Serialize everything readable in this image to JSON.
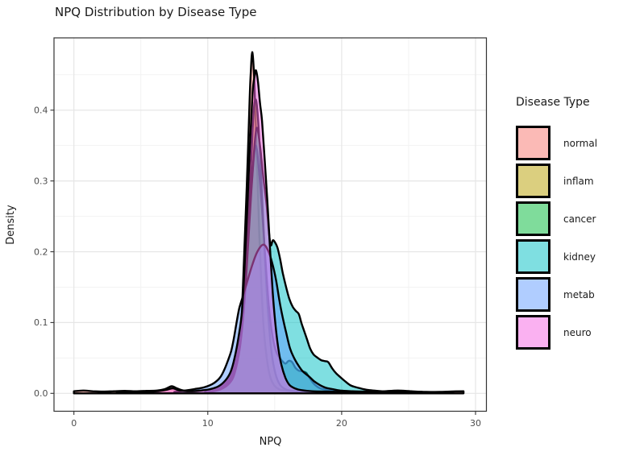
{
  "chart_data": {
    "type": "area",
    "title": "NPQ Distribution by Disease Type",
    "xlabel": "NPQ",
    "ylabel": "Density",
    "xlim": [
      0,
      30
    ],
    "ylim": [
      0,
      0.48
    ],
    "grid": true,
    "legend_position": "right",
    "legend_title": "Disease Type",
    "x_ticks": [
      0,
      10,
      20,
      30
    ],
    "x_tick_labels": [
      "0",
      "10",
      "20",
      "30"
    ],
    "x_minor_ticks": [
      5,
      15,
      25
    ],
    "y_ticks": [
      0,
      0.1,
      0.2,
      0.3,
      0.4
    ],
    "y_tick_labels": [
      "0.0",
      "0.1",
      "0.2",
      "0.3",
      "0.4"
    ],
    "y_minor_ticks": [
      0.05,
      0.15,
      0.25,
      0.35,
      0.45
    ],
    "series": [
      {
        "name": "normal",
        "fill": "rgba(248,118,109,0.5)",
        "stroke": "#000000",
        "points": [
          [
            0,
            0.003
          ],
          [
            0.7,
            0.004
          ],
          [
            1.4,
            0.003
          ],
          [
            2.2,
            0.0025
          ],
          [
            3,
            0.003
          ],
          [
            3.8,
            0.0035
          ],
          [
            4.6,
            0.003
          ],
          [
            5.4,
            0.0035
          ],
          [
            6.2,
            0.004
          ],
          [
            6.8,
            0.006
          ],
          [
            7.3,
            0.01
          ],
          [
            7.7,
            0.007
          ],
          [
            8.2,
            0.004
          ],
          [
            8.8,
            0.0035
          ],
          [
            9.4,
            0.004
          ],
          [
            10,
            0.005
          ],
          [
            10.5,
            0.007
          ],
          [
            11,
            0.011
          ],
          [
            11.4,
            0.018
          ],
          [
            11.8,
            0.03
          ],
          [
            12.1,
            0.048
          ],
          [
            12.35,
            0.072
          ],
          [
            12.55,
            0.12
          ],
          [
            12.7,
            0.185
          ],
          [
            12.85,
            0.26
          ],
          [
            13,
            0.34
          ],
          [
            13.1,
            0.4
          ],
          [
            13.2,
            0.45
          ],
          [
            13.32,
            0.482
          ],
          [
            13.45,
            0.452
          ],
          [
            13.55,
            0.4
          ],
          [
            13.7,
            0.31
          ],
          [
            13.85,
            0.225
          ],
          [
            14,
            0.155
          ],
          [
            14.15,
            0.1
          ],
          [
            14.35,
            0.058
          ],
          [
            14.6,
            0.028
          ],
          [
            14.9,
            0.013
          ],
          [
            15.3,
            0.006
          ],
          [
            15.9,
            0.0035
          ],
          [
            16.8,
            0.003
          ],
          [
            18,
            0.0025
          ],
          [
            19.5,
            0.002
          ],
          [
            21,
            0.002
          ],
          [
            22.3,
            0.002
          ],
          [
            23.2,
            0.003
          ],
          [
            24.2,
            0.004
          ],
          [
            25.2,
            0.003
          ],
          [
            26.3,
            0.002
          ],
          [
            27.5,
            0.0022
          ],
          [
            28.5,
            0.0028
          ],
          [
            29.1,
            0.003
          ]
        ]
      },
      {
        "name": "inflam",
        "fill": "rgba(183,159,0,0.5)",
        "stroke": "#000000",
        "points": [
          [
            10,
            0.002
          ],
          [
            10.8,
            0.006
          ],
          [
            11.4,
            0.014
          ],
          [
            11.9,
            0.03
          ],
          [
            12.3,
            0.06
          ],
          [
            12.65,
            0.12
          ],
          [
            12.95,
            0.21
          ],
          [
            13.2,
            0.31
          ],
          [
            13.4,
            0.39
          ],
          [
            13.55,
            0.415
          ],
          [
            13.7,
            0.4
          ],
          [
            13.9,
            0.34
          ],
          [
            14.1,
            0.26
          ],
          [
            14.3,
            0.18
          ],
          [
            14.5,
            0.115
          ],
          [
            14.75,
            0.06
          ],
          [
            15.05,
            0.028
          ],
          [
            15.4,
            0.012
          ],
          [
            15.9,
            0.005
          ],
          [
            16.6,
            0.003
          ],
          [
            17.5,
            0.002
          ]
        ]
      },
      {
        "name": "cancer",
        "fill": "rgba(0,186,56,0.5)",
        "stroke": "#000000",
        "points": [
          [
            9.8,
            0.002
          ],
          [
            10.6,
            0.004
          ],
          [
            11.2,
            0.009
          ],
          [
            11.7,
            0.02
          ],
          [
            12.1,
            0.042
          ],
          [
            12.5,
            0.095
          ],
          [
            12.85,
            0.17
          ],
          [
            13.15,
            0.26
          ],
          [
            13.4,
            0.325
          ],
          [
            13.6,
            0.35
          ],
          [
            13.8,
            0.32
          ],
          [
            14.05,
            0.26
          ],
          [
            14.3,
            0.19
          ],
          [
            14.55,
            0.125
          ],
          [
            14.8,
            0.085
          ],
          [
            15.05,
            0.062
          ],
          [
            15.3,
            0.052
          ],
          [
            15.55,
            0.046
          ],
          [
            15.8,
            0.042
          ],
          [
            16.05,
            0.046
          ],
          [
            16.3,
            0.044
          ],
          [
            16.55,
            0.036
          ],
          [
            16.8,
            0.032
          ],
          [
            17.1,
            0.031
          ],
          [
            17.35,
            0.029
          ],
          [
            17.6,
            0.022
          ],
          [
            17.9,
            0.014
          ],
          [
            18.3,
            0.008
          ],
          [
            18.8,
            0.005
          ],
          [
            19.5,
            0.0035
          ],
          [
            20.3,
            0.0025
          ],
          [
            21.2,
            0.002
          ]
        ]
      },
      {
        "name": "kidney",
        "fill": "rgba(0,191,196,0.5)",
        "stroke": "#000000",
        "points": [
          [
            10.2,
            0.002
          ],
          [
            11,
            0.006
          ],
          [
            11.6,
            0.014
          ],
          [
            12,
            0.028
          ],
          [
            12.4,
            0.065
          ],
          [
            12.7,
            0.12
          ],
          [
            12.95,
            0.19
          ],
          [
            13.2,
            0.27
          ],
          [
            13.45,
            0.34
          ],
          [
            13.65,
            0.375
          ],
          [
            13.9,
            0.35
          ],
          [
            14.15,
            0.305
          ],
          [
            14.4,
            0.265
          ],
          [
            14.6,
            0.222
          ],
          [
            14.72,
            0.209
          ],
          [
            14.85,
            0.216
          ],
          [
            15,
            0.214
          ],
          [
            15.2,
            0.206
          ],
          [
            15.4,
            0.19
          ],
          [
            15.6,
            0.17
          ],
          [
            15.85,
            0.15
          ],
          [
            16.1,
            0.133
          ],
          [
            16.35,
            0.122
          ],
          [
            16.6,
            0.116
          ],
          [
            16.8,
            0.112
          ],
          [
            17,
            0.099
          ],
          [
            17.2,
            0.088
          ],
          [
            17.4,
            0.077
          ],
          [
            17.65,
            0.063
          ],
          [
            17.9,
            0.055
          ],
          [
            18.15,
            0.051
          ],
          [
            18.45,
            0.047
          ],
          [
            18.75,
            0.0455
          ],
          [
            19,
            0.044
          ],
          [
            19.3,
            0.035
          ],
          [
            19.6,
            0.028
          ],
          [
            19.9,
            0.023
          ],
          [
            20.2,
            0.018
          ],
          [
            20.6,
            0.012
          ],
          [
            21,
            0.009
          ],
          [
            21.4,
            0.007
          ],
          [
            21.9,
            0.005
          ],
          [
            22.4,
            0.004
          ],
          [
            23,
            0.003
          ],
          [
            23.8,
            0.0025
          ]
        ]
      },
      {
        "name": "metab",
        "fill": "rgba(97,156,255,0.5)",
        "stroke": "#000000",
        "points": [
          [
            7.5,
            0.002
          ],
          [
            8.3,
            0.004
          ],
          [
            9,
            0.006
          ],
          [
            9.6,
            0.008
          ],
          [
            10.1,
            0.011
          ],
          [
            10.5,
            0.015
          ],
          [
            10.9,
            0.022
          ],
          [
            11.2,
            0.032
          ],
          [
            11.5,
            0.046
          ],
          [
            11.75,
            0.06
          ],
          [
            11.95,
            0.078
          ],
          [
            12.15,
            0.1
          ],
          [
            12.35,
            0.12
          ],
          [
            12.6,
            0.136
          ],
          [
            12.9,
            0.155
          ],
          [
            13.3,
            0.18
          ],
          [
            13.7,
            0.2
          ],
          [
            14.15,
            0.21
          ],
          [
            14.5,
            0.202
          ],
          [
            14.8,
            0.185
          ],
          [
            15.1,
            0.16
          ],
          [
            15.35,
            0.131
          ],
          [
            15.6,
            0.107
          ],
          [
            15.85,
            0.086
          ],
          [
            16.15,
            0.063
          ],
          [
            16.45,
            0.05
          ],
          [
            16.75,
            0.04
          ],
          [
            17.1,
            0.031
          ],
          [
            17.55,
            0.024
          ],
          [
            17.95,
            0.017
          ],
          [
            18.35,
            0.012
          ],
          [
            18.8,
            0.008
          ],
          [
            19.3,
            0.006
          ],
          [
            19.9,
            0.004
          ],
          [
            20.8,
            0.003
          ],
          [
            22,
            0.0025
          ],
          [
            23.5,
            0.002
          ]
        ]
      },
      {
        "name": "neuro",
        "fill": "rgba(245,100,227,0.5)",
        "stroke": "#000000",
        "points": [
          [
            3.2,
            0.002
          ],
          [
            4.2,
            0.002
          ],
          [
            5.2,
            0.0025
          ],
          [
            6.2,
            0.003
          ],
          [
            6.9,
            0.005
          ],
          [
            7.4,
            0.007
          ],
          [
            7.9,
            0.004
          ],
          [
            8.7,
            0.003
          ],
          [
            9.5,
            0.004
          ],
          [
            10.2,
            0.006
          ],
          [
            10.8,
            0.01
          ],
          [
            11.3,
            0.018
          ],
          [
            11.7,
            0.03
          ],
          [
            12,
            0.05
          ],
          [
            12.3,
            0.08
          ],
          [
            12.55,
            0.115
          ],
          [
            12.75,
            0.18
          ],
          [
            12.95,
            0.26
          ],
          [
            13.15,
            0.35
          ],
          [
            13.35,
            0.425
          ],
          [
            13.5,
            0.448
          ],
          [
            13.6,
            0.456
          ],
          [
            13.75,
            0.44
          ],
          [
            13.9,
            0.41
          ],
          [
            14.05,
            0.385
          ],
          [
            14.25,
            0.33
          ],
          [
            14.45,
            0.272
          ],
          [
            14.65,
            0.205
          ],
          [
            14.85,
            0.142
          ],
          [
            15.05,
            0.098
          ],
          [
            15.25,
            0.066
          ],
          [
            15.5,
            0.04
          ],
          [
            15.8,
            0.022
          ],
          [
            16.1,
            0.012
          ],
          [
            16.5,
            0.007
          ],
          [
            17,
            0.0045
          ],
          [
            17.8,
            0.003
          ],
          [
            19,
            0.0025
          ],
          [
            20.5,
            0.002
          ],
          [
            22,
            0.002
          ],
          [
            24,
            0.002
          ],
          [
            26,
            0.002
          ]
        ]
      }
    ]
  }
}
